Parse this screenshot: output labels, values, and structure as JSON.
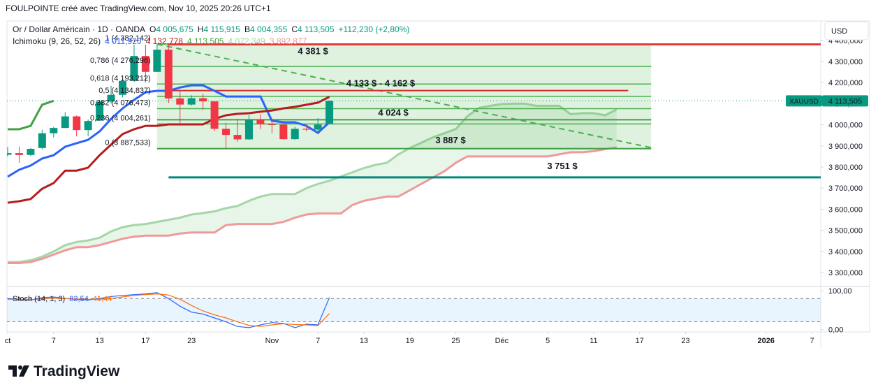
{
  "chart_data": {
    "type": "candlestick",
    "credit": "FOULPOINTE créé avec TradingView.com, Nov 10, 2025 20:26 UTC+1",
    "title": "Or / Dollar Américain · 1D · OANDA",
    "ohlc_legend": [
      {
        "key": "O",
        "value": "4 005,675"
      },
      {
        "key": "H",
        "value": "4 115,915"
      },
      {
        "key": "B",
        "value": "4 004,355"
      },
      {
        "key": "C",
        "value": "4 113,505"
      }
    ],
    "change_label": "+112,230 (+2,80%)",
    "currency": "USD",
    "symbol": "XAUUSD",
    "last_price": {
      "value": 4113.505,
      "label": "4 113,505"
    },
    "up_color": "#089981",
    "down_color": "#f23645",
    "grid": false,
    "x": [
      "2025-10-01",
      "2025-10-02",
      "2025-10-03",
      "2025-10-06",
      "2025-10-07",
      "2025-10-08",
      "2025-10-09",
      "2025-10-10",
      "2025-10-13",
      "2025-10-14",
      "2025-10-15",
      "2025-10-16",
      "2025-10-17",
      "2025-10-20",
      "2025-10-21",
      "2025-10-22",
      "2025-10-23",
      "2025-10-24",
      "2025-10-27",
      "2025-10-28",
      "2025-10-29",
      "2025-10-30",
      "2025-10-31",
      "2025-11-03",
      "2025-11-04",
      "2025-11-05",
      "2025-11-06",
      "2025-11-07",
      "2025-11-10"
    ],
    "open": [
      3858,
      3866,
      3857,
      3890,
      3960,
      3985,
      4040,
      3975,
      4020,
      4110,
      4142,
      4208,
      4326,
      4251,
      4356,
      4125,
      4096,
      4126,
      4111,
      3981,
      3952,
      3931,
      4024,
      4002,
      4001,
      3932,
      3981,
      3977,
      4005.675
    ],
    "high": [
      3895,
      3897,
      3890,
      3977,
      3990,
      4060,
      4044,
      4025,
      4117,
      4185,
      4218,
      4380,
      4380,
      4381,
      4382,
      4160,
      4140,
      4147,
      4112,
      4010,
      4029,
      4046,
      4050,
      4030,
      4005,
      3990,
      4000,
      4032,
      4115.915
    ],
    "low": [
      3850,
      3820,
      3852,
      3885,
      3940,
      3985,
      3945,
      3945,
      4020,
      4100,
      4130,
      4207,
      4200,
      4250,
      4103,
      4005,
      4090,
      4070,
      3970,
      3888,
      3920,
      3930,
      3980,
      3960,
      3930,
      3930,
      3970,
      3955,
      4004.355
    ],
    "close": [
      3866,
      3857,
      3886,
      3960,
      3985,
      4040,
      3975,
      4018,
      4110,
      4142,
      4208,
      4326,
      4251,
      4356,
      4125,
      4096,
      4126,
      4111,
      3981,
      3952,
      3931,
      4024,
      4002,
      4001,
      3932,
      3981,
      3977,
      4001,
      4113.505
    ],
    "ylim": [
      3234,
      4492
    ],
    "yticks": [
      {
        "value": 3300,
        "label": "3 300,000"
      },
      {
        "value": 3400,
        "label": "3 400,000"
      },
      {
        "value": 3500,
        "label": "3 500,000"
      },
      {
        "value": 3600,
        "label": "3 600,000"
      },
      {
        "value": 3700,
        "label": "3 700,000"
      },
      {
        "value": 3800,
        "label": "3 800,000"
      },
      {
        "value": 3900,
        "label": "3 900,000"
      },
      {
        "value": 4000,
        "label": "4 000,000"
      },
      {
        "value": 4100,
        "label": "4 100,000"
      },
      {
        "value": 4200,
        "label": "4 200,000"
      },
      {
        "value": 4300,
        "label": "4 300,000"
      },
      {
        "value": 4400,
        "label": "4 400,000"
      }
    ],
    "xticks": [
      {
        "value": "2025-10-01",
        "label": "ct"
      },
      {
        "value": "2025-10-07",
        "label": "7"
      },
      {
        "value": "2025-10-13",
        "label": "13"
      },
      {
        "value": "2025-10-17",
        "label": "17"
      },
      {
        "value": "2025-10-23",
        "label": "23"
      },
      {
        "value": "2025-11-03",
        "label": "Nov"
      },
      {
        "value": "2025-11-07",
        "label": "7"
      },
      {
        "value": "2025-11-13",
        "label": "13"
      },
      {
        "value": "2025-11-19",
        "label": "19"
      },
      {
        "value": "2025-11-25",
        "label": "25"
      },
      {
        "value": "2025-12-01",
        "label": "Déc"
      },
      {
        "value": "2025-12-05",
        "label": "5"
      },
      {
        "value": "2025-12-11",
        "label": "11"
      },
      {
        "value": "2025-12-17",
        "label": "17"
      },
      {
        "value": "2025-12-23",
        "label": "23"
      },
      {
        "value": "2026-01-01",
        "label": "2026"
      },
      {
        "value": "2026-01-07",
        "label": "7"
      }
    ],
    "ichimoku": {
      "label": "Ichimoku (9, 26, 52, 26)",
      "conversion": {
        "color": "#2962ff",
        "legend_value": "4 011,920",
        "values": [
          3754,
          3787,
          3807,
          3840,
          3856,
          3896,
          3913,
          3929,
          3969,
          4028,
          4078,
          4118,
          4154,
          4161,
          4161,
          4177,
          4187,
          4187,
          4161,
          4134,
          4134,
          4134,
          4134,
          4019,
          4012,
          4012,
          3995,
          3962,
          4011.92
        ]
      },
      "base": {
        "color": "#b71c1c",
        "legend_value": "4 132,778",
        "values": [
          3631,
          3638,
          3648,
          3697,
          3724,
          3783,
          3783,
          3797,
          3856,
          3906,
          3956,
          3979,
          3995,
          3995,
          4002,
          4002,
          4002,
          4002,
          4028,
          4045,
          4052,
          4055,
          4062,
          4068,
          4078,
          4085,
          4095,
          4105,
          4132.778
        ]
      },
      "lagging": {
        "color": "#43a047",
        "legend_value": "4 113,505",
        "values": [
          3979,
          3979,
          3995,
          4095,
          4113.505
        ]
      },
      "leading_x": [
        "2025-10-01",
        "2025-10-02",
        "2025-10-03",
        "2025-10-06",
        "2025-10-07",
        "2025-10-08",
        "2025-10-09",
        "2025-10-10",
        "2025-10-13",
        "2025-10-14",
        "2025-10-15",
        "2025-10-16",
        "2025-10-17",
        "2025-10-20",
        "2025-10-21",
        "2025-10-22",
        "2025-10-23",
        "2025-10-24",
        "2025-10-27",
        "2025-10-28",
        "2025-10-29",
        "2025-10-30",
        "2025-10-31",
        "2025-11-03",
        "2025-11-04",
        "2025-11-05",
        "2025-11-06",
        "2025-11-07",
        "2025-11-10",
        "2025-11-11",
        "2025-11-12",
        "2025-11-13",
        "2025-11-14",
        "2025-11-17",
        "2025-11-18",
        "2025-11-19",
        "2025-11-20",
        "2025-11-21",
        "2025-11-24",
        "2025-11-25",
        "2025-11-26",
        "2025-11-27",
        "2025-11-28",
        "2025-12-01",
        "2025-12-02",
        "2025-12-03",
        "2025-12-04",
        "2025-12-05",
        "2025-12-08",
        "2025-12-09",
        "2025-12-10",
        "2025-12-11",
        "2025-12-12",
        "2025-12-15"
      ],
      "span_a": {
        "color": "#a5d6a7",
        "legend_value": "4 072,349",
        "values": [
          3350,
          3350,
          3358,
          3375,
          3400,
          3430,
          3445,
          3452,
          3465,
          3495,
          3515,
          3525,
          3530,
          3540,
          3550,
          3560,
          3575,
          3582,
          3590,
          3605,
          3615,
          3640,
          3660,
          3672,
          3672,
          3672,
          3700,
          3720,
          3735,
          3755,
          3775,
          3795,
          3810,
          3820,
          3860,
          3890,
          3915,
          3940,
          3960,
          3980,
          4040,
          4080,
          4090,
          4098,
          4100,
          4100,
          4090,
          4090,
          4090,
          4050,
          4055,
          4055,
          4045,
          4072.349
        ]
      },
      "span_b": {
        "color": "#ef9a9a",
        "legend_value": "3 892,877",
        "values": [
          3345,
          3345,
          3350,
          3365,
          3385,
          3405,
          3420,
          3420,
          3430,
          3445,
          3460,
          3470,
          3475,
          3475,
          3475,
          3485,
          3490,
          3490,
          3490,
          3525,
          3530,
          3530,
          3530,
          3530,
          3540,
          3560,
          3575,
          3580,
          3580,
          3580,
          3620,
          3640,
          3650,
          3660,
          3660,
          3690,
          3720,
          3750,
          3780,
          3820,
          3850,
          3850,
          3850,
          3850,
          3850,
          3850,
          3850,
          3850,
          3860,
          3870,
          3870,
          3875,
          3885,
          3892.877
        ]
      },
      "cloud_color": "#a5d6a7"
    },
    "fib": {
      "start": "2025-10-20",
      "end": "2025-12-18",
      "color": "#4caf50",
      "zone_color": "#4caf50",
      "levels": [
        {
          "price": 4382.142,
          "label": "1 (4 382,142)"
        },
        {
          "price": 4276.296,
          "label": "0,786 (4 276,296)"
        },
        {
          "price": 4193.212,
          "label": "0,618 (4 193,212)"
        },
        {
          "price": 4134.837,
          "label": "0,5 (4 134,837)"
        },
        {
          "price": 4076.473,
          "label": "0,382 (4 076,473)"
        },
        {
          "price": 4004.261,
          "label": "0,236 (4 004,261)"
        },
        {
          "price": 3887.533,
          "label": "0 (3 887,533)"
        }
      ]
    },
    "trend_line": {
      "start": "2025-10-20",
      "end": "2025-12-18",
      "from": 4382,
      "to": 3892,
      "color": "#4caf50"
    },
    "price_lines": [
      {
        "price": 4381,
        "label": "4 381 $",
        "color": "#e53935",
        "start": "2025-10-21",
        "end": null
      },
      {
        "price": 4162,
        "label": "4 133 $ - 4 162 $",
        "color": "#d32f2f",
        "start": "2025-10-20",
        "end": "2025-12-16"
      },
      {
        "price": 4024,
        "label": "4 024 $",
        "color": "#43a047",
        "start": "2025-10-20",
        "end": "2025-12-18"
      },
      {
        "price": 3887,
        "label": "3 887 $",
        "color": "#43a047",
        "start": "2025-10-20",
        "end": "2025-12-18"
      },
      {
        "price": 3751,
        "label": "3 751 $",
        "color": "#00897b",
        "start": "2025-10-21",
        "end": null
      }
    ],
    "stoch": {
      "label": "Stoch (14, 1, 3)",
      "ylim": [
        -6,
        111
      ],
      "yticks": [
        {
          "value": 100,
          "label": "100,00"
        },
        {
          "value": 0,
          "label": "0,00"
        }
      ],
      "bands": [
        20,
        80
      ],
      "band_color": "#2196f3",
      "k": {
        "color": "#2962ff",
        "legend_value": "82,54",
        "values": [
          80,
          78,
          76,
          82,
          84,
          80,
          78,
          76,
          80,
          85,
          88,
          90,
          92,
          95,
          80,
          60,
          45,
          40,
          30,
          20,
          8,
          5,
          12,
          18,
          16,
          5,
          14,
          12,
          82.54
        ]
      },
      "d": {
        "color": "#ff6d00",
        "legend_value": "41,44",
        "values": [
          78,
          78,
          77,
          79,
          81,
          80,
          79,
          78,
          78,
          80,
          84,
          88,
          90,
          92,
          89,
          78,
          62,
          48,
          38,
          30,
          20,
          11,
          8,
          12,
          15,
          13,
          12,
          10,
          41.44
        ]
      }
    },
    "brand": "TradingView"
  }
}
